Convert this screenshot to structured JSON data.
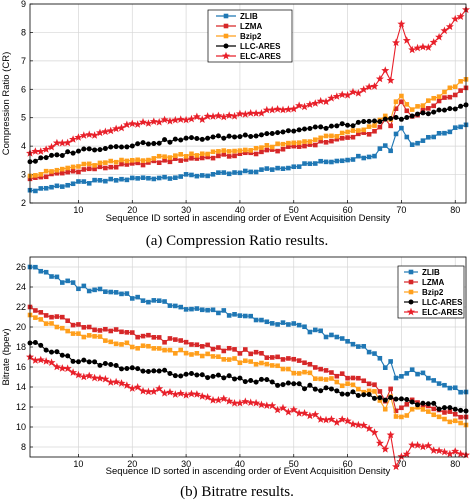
{
  "chart_data": [
    {
      "type": "line",
      "caption": "(a) Compression Ratio results.",
      "xlabel": "Sequence ID sorted in ascending order of Event Acquisition Density",
      "ylabel": "Compression Ratio (CR)",
      "xlim": [
        1,
        82
      ],
      "ylim": [
        2,
        9
      ],
      "xticks": [
        10,
        20,
        30,
        40,
        50,
        60,
        70,
        80
      ],
      "yticks": [
        2,
        3,
        4,
        5,
        6,
        7,
        8,
        9
      ],
      "grid": true,
      "legend": "top-left",
      "series": [
        {
          "name": "ZLIB",
          "color": "#1f77b4",
          "marker": "square",
          "start": 2.45,
          "end": 4.75,
          "anchors": [
            [
              1,
              2.45
            ],
            [
              10,
              2.7
            ],
            [
              20,
              2.85
            ],
            [
              30,
              2.95
            ],
            [
              40,
              3.05
            ],
            [
              50,
              3.3
            ],
            [
              60,
              3.55
            ],
            [
              65,
              3.7
            ],
            [
              70,
              3.95
            ],
            [
              75,
              4.3
            ],
            [
              82,
              4.75
            ]
          ]
        },
        {
          "name": "LZMA",
          "color": "#d62728",
          "marker": "square",
          "start": 2.85,
          "end": 6.05,
          "anchors": [
            [
              1,
              2.85
            ],
            [
              10,
              3.15
            ],
            [
              20,
              3.35
            ],
            [
              30,
              3.55
            ],
            [
              40,
              3.7
            ],
            [
              50,
              3.95
            ],
            [
              60,
              4.3
            ],
            [
              65,
              4.5
            ],
            [
              70,
              4.85
            ],
            [
              75,
              5.35
            ],
            [
              82,
              6.05
            ]
          ]
        },
        {
          "name": "Bzip2",
          "color": "#ff9f1c",
          "marker": "square",
          "start": 2.95,
          "end": 6.35,
          "anchors": [
            [
              1,
              2.95
            ],
            [
              10,
              3.3
            ],
            [
              20,
              3.5
            ],
            [
              30,
              3.7
            ],
            [
              40,
              3.85
            ],
            [
              50,
              4.1
            ],
            [
              60,
              4.45
            ],
            [
              65,
              4.7
            ],
            [
              70,
              5.05
            ],
            [
              75,
              5.55
            ],
            [
              82,
              6.35
            ]
          ]
        },
        {
          "name": "LLC-ARES",
          "color": "#000000",
          "marker": "circle",
          "start": 3.45,
          "end": 5.45,
          "anchors": [
            [
              1,
              3.45
            ],
            [
              10,
              3.85
            ],
            [
              20,
              4.05
            ],
            [
              30,
              4.25
            ],
            [
              40,
              4.35
            ],
            [
              50,
              4.55
            ],
            [
              60,
              4.75
            ],
            [
              65,
              4.85
            ],
            [
              70,
              5.0
            ],
            [
              75,
              5.15
            ],
            [
              82,
              5.45
            ]
          ]
        },
        {
          "name": "ELC-ARES",
          "color": "#e8202a",
          "marker": "star",
          "start": 3.75,
          "end": 8.8,
          "anchors": [
            [
              1,
              3.75
            ],
            [
              10,
              4.3
            ],
            [
              20,
              4.75
            ],
            [
              30,
              4.95
            ],
            [
              40,
              5.1
            ],
            [
              50,
              5.35
            ],
            [
              60,
              5.8
            ],
            [
              65,
              6.1
            ],
            [
              68,
              6.35
            ],
            [
              70,
              7.3
            ],
            [
              75,
              7.5
            ],
            [
              82,
              8.8
            ]
          ]
        }
      ]
    },
    {
      "type": "line",
      "caption": "(b) Bitratre results.",
      "xlabel": "Sequence ID sorted in ascending order of Event Acquisition Density",
      "ylabel": "Bitrate (bpev)",
      "xlim": [
        1,
        82
      ],
      "ylim": [
        7,
        27
      ],
      "xticks": [
        10,
        20,
        30,
        40,
        50,
        60,
        70,
        80
      ],
      "yticks": [
        8,
        10,
        12,
        14,
        16,
        18,
        20,
        22,
        24,
        26
      ],
      "grid": true,
      "legend": "top-right",
      "series": [
        {
          "name": "ZLIB",
          "color": "#1f77b4",
          "marker": "square",
          "start": 26.0,
          "end": 13.5,
          "anchors": [
            [
              1,
              26.0
            ],
            [
              10,
              24.0
            ],
            [
              20,
              23.0
            ],
            [
              30,
              22.0
            ],
            [
              40,
              21.2
            ],
            [
              50,
              20.2
            ],
            [
              60,
              18.6
            ],
            [
              65,
              17.5
            ],
            [
              70,
              16.2
            ],
            [
              75,
              15.0
            ],
            [
              82,
              13.5
            ]
          ]
        },
        {
          "name": "LZMA",
          "color": "#d62728",
          "marker": "square",
          "start": 22.0,
          "end": 11.0,
          "anchors": [
            [
              1,
              22.0
            ],
            [
              10,
              20.2
            ],
            [
              20,
              19.2
            ],
            [
              30,
              18.4
            ],
            [
              40,
              17.6
            ],
            [
              50,
              16.6
            ],
            [
              60,
              15.0
            ],
            [
              65,
              14.2
            ],
            [
              70,
              13.2
            ],
            [
              75,
              12.2
            ],
            [
              82,
              11.0
            ]
          ]
        },
        {
          "name": "Bzip2",
          "color": "#ff9f1c",
          "marker": "square",
          "start": 21.2,
          "end": 10.2,
          "anchors": [
            [
              1,
              21.2
            ],
            [
              10,
              19.2
            ],
            [
              20,
              18.2
            ],
            [
              30,
              17.4
            ],
            [
              40,
              16.6
            ],
            [
              50,
              15.6
            ],
            [
              60,
              14.2
            ],
            [
              65,
              13.4
            ],
            [
              70,
              12.4
            ],
            [
              75,
              11.4
            ],
            [
              82,
              10.2
            ]
          ]
        },
        {
          "name": "LLC-ARES",
          "color": "#000000",
          "marker": "circle",
          "start": 18.4,
          "end": 11.6,
          "anchors": [
            [
              1,
              18.4
            ],
            [
              10,
              16.6
            ],
            [
              20,
              15.8
            ],
            [
              30,
              15.2
            ],
            [
              40,
              14.8
            ],
            [
              50,
              14.2
            ],
            [
              60,
              13.4
            ],
            [
              65,
              13.0
            ],
            [
              70,
              12.6
            ],
            [
              75,
              12.2
            ],
            [
              82,
              11.6
            ]
          ]
        },
        {
          "name": "ELC-ARES",
          "color": "#e8202a",
          "marker": "star",
          "start": 17.0,
          "end": 7.2,
          "anchors": [
            [
              1,
              17.0
            ],
            [
              10,
              15.2
            ],
            [
              20,
              14.0
            ],
            [
              30,
              13.2
            ],
            [
              40,
              12.4
            ],
            [
              50,
              11.6
            ],
            [
              60,
              10.4
            ],
            [
              65,
              9.6
            ],
            [
              70,
              8.6
            ],
            [
              75,
              7.9
            ],
            [
              82,
              7.2
            ]
          ]
        }
      ]
    }
  ]
}
